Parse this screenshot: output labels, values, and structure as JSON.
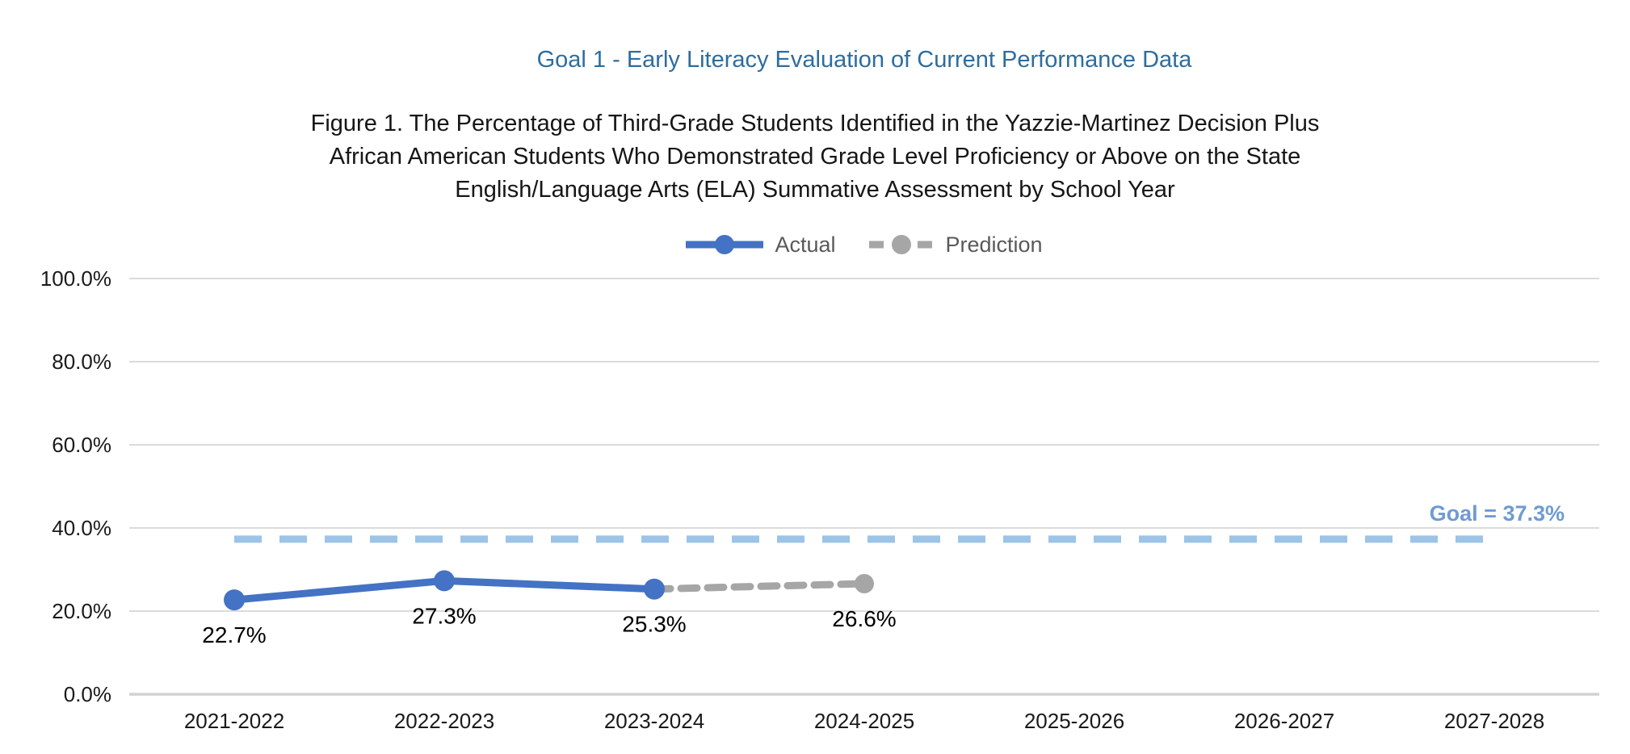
{
  "chart_data": {
    "type": "line",
    "title": "Goal 1 -  Early Literacy Evaluation of Current Performance Data",
    "caption_lines": [
      "Figure 1. The Percentage of Third-Grade Students Identified in the Yazzie-Martinez Decision Plus",
      "African American Students Who Demonstrated Grade Level Proficiency or Above on the State",
      "English/Language Arts (ELA) Summative Assessment by School Year"
    ],
    "categories": [
      "2021-2022",
      "2022-2023",
      "2023-2024",
      "2024-2025",
      "2025-2026",
      "2026-2027",
      "2027-2028"
    ],
    "series": [
      {
        "name": "Actual",
        "line_style": "solid",
        "color": "#4472C4",
        "points": [
          {
            "x": "2021-2022",
            "y": 22.7,
            "label": "22.7%"
          },
          {
            "x": "2022-2023",
            "y": 27.3,
            "label": "27.3%"
          },
          {
            "x": "2023-2024",
            "y": 25.3,
            "label": "25.3%"
          }
        ]
      },
      {
        "name": "Prediction",
        "line_style": "dashed",
        "color": "#A6A6A6",
        "points": [
          {
            "x": "2023-2024",
            "y": 25.3,
            "label": null
          },
          {
            "x": "2024-2025",
            "y": 26.6,
            "label": "26.6%"
          }
        ]
      }
    ],
    "goal_line": {
      "value": 37.3,
      "label": "Goal = 37.3%",
      "line_color": "#9DC3E6",
      "label_color": "#6E9BD2"
    },
    "y_axis": {
      "min": 0,
      "max": 100,
      "tick_step": 20,
      "tick_labels": [
        "0.0%",
        "20.0%",
        "40.0%",
        "60.0%",
        "80.0%",
        "100.0%"
      ]
    },
    "legend": {
      "position": "top"
    },
    "grid": {
      "horizontal": true,
      "color": "#DBDBDB",
      "axis_color": "#D2D2D2"
    },
    "text_colors": {
      "title": "#2E6D9E",
      "caption": "#161616",
      "tick": "#1A1A1A",
      "data_label": "#000000",
      "legend": "#595959"
    }
  }
}
